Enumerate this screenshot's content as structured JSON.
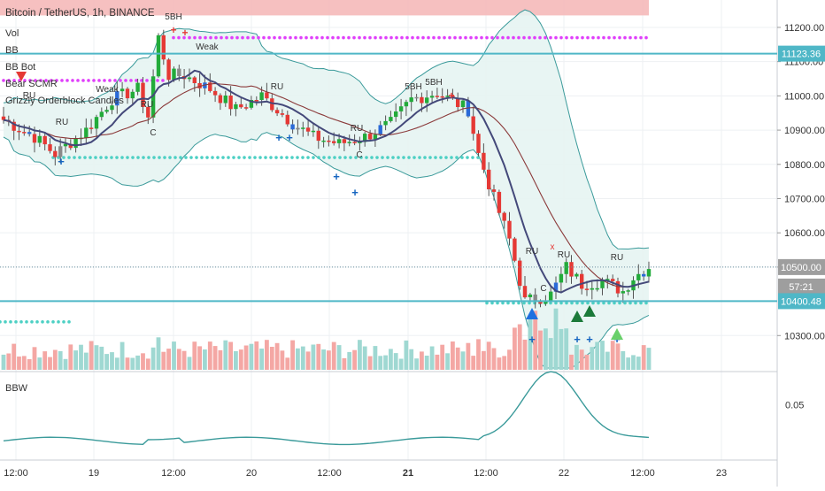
{
  "header": {
    "title": "Bitcoin / TetherUS, 1h, BINANCE",
    "legend": [
      "Vol",
      "BB",
      "BB Bot",
      "Bear SCMR",
      "Grizzly Orderblock Candles"
    ]
  },
  "price_axis": {
    "ticks": [
      "11200.00",
      "11100.00",
      "11000.00",
      "10900.00",
      "10800.00",
      "10700.00",
      "10600.00",
      "10500.00",
      "10300.00"
    ],
    "labels": [
      {
        "text": "11123.36",
        "kind": "level"
      },
      {
        "text": "10500.00",
        "kind": "price"
      },
      {
        "text": "57:21",
        "kind": "countdown"
      },
      {
        "text": "10400.48",
        "kind": "level"
      }
    ]
  },
  "time_axis": {
    "ticks": [
      "12:00",
      "19",
      "12:00",
      "20",
      "12:00",
      "21",
      "12:00",
      "22",
      "12:00",
      "23"
    ]
  },
  "lower_pane": {
    "title": "BBW",
    "tick": "0.05"
  },
  "annotations": [
    "5BH",
    "5BH",
    "5BH",
    "Weak",
    "Weak",
    "RU",
    "RU",
    "RU",
    "RU",
    "RU",
    "RU",
    "RU",
    "RU",
    "C",
    "C",
    "C",
    "x"
  ],
  "colors": {
    "up": "#26a69a",
    "down": "#ef5350",
    "bb_fill": "#e6f4f2",
    "band": "#3a9a9a",
    "ma_fast": "#44497a",
    "ma_slow": "#8b3a3a",
    "resistance_zone": "#f5b5b5",
    "magenta_dots": "#e040fb",
    "cyan_dots": "#4dd0c4",
    "hline": "#4fb7c7"
  },
  "chart_data": {
    "type": "candlestick",
    "symbol": "BTCUSDT",
    "interval": "1h",
    "y_range": [
      10200,
      11280
    ],
    "key_levels": [
      11123.36,
      10400.48
    ],
    "last_price": 10500.0,
    "price_path": [
      [
        0,
        10930
      ],
      [
        6,
        10880
      ],
      [
        10,
        10830
      ],
      [
        16,
        10900
      ],
      [
        21,
        10990
      ],
      [
        26,
        11020
      ],
      [
        28,
        10940
      ],
      [
        30,
        11170
      ],
      [
        32,
        11060
      ],
      [
        35,
        11060
      ],
      [
        40,
        11020
      ],
      [
        45,
        10960
      ],
      [
        50,
        11000
      ],
      [
        56,
        10920
      ],
      [
        60,
        10880
      ],
      [
        65,
        10860
      ],
      [
        70,
        10880
      ],
      [
        75,
        10920
      ],
      [
        79,
        10990
      ],
      [
        84,
        11010
      ],
      [
        90,
        10960
      ],
      [
        92,
        10830
      ],
      [
        95,
        10700
      ],
      [
        98,
        10580
      ],
      [
        101,
        10400
      ],
      [
        106,
        10420
      ],
      [
        109,
        10500
      ],
      [
        112,
        10450
      ],
      [
        116,
        10460
      ],
      [
        120,
        10430
      ],
      [
        122,
        10470
      ],
      [
        125,
        10500
      ]
    ],
    "volume_levels": [
      0.35,
      0.4,
      0.45,
      0.5,
      0.55,
      0.6,
      0.65,
      0.7,
      0.75,
      0.8,
      0.85,
      0.9,
      0.95,
      1.0
    ]
  }
}
